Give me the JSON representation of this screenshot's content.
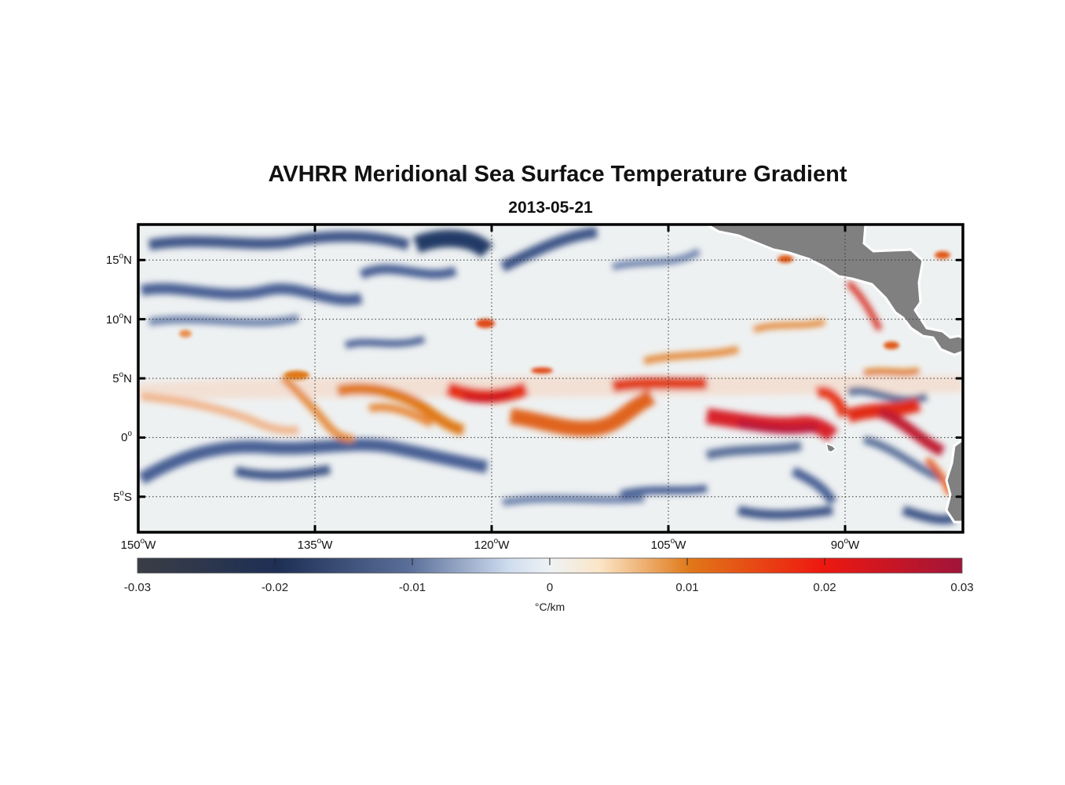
{
  "title": "AVHRR Meridional Sea Surface Temperature Gradient",
  "subtitle": "2013-05-21",
  "map": {
    "lon_range": [
      -150,
      -80
    ],
    "lat_range": [
      -8,
      18
    ],
    "lat_ticks": [
      {
        "num": "15",
        "hem": "N"
      },
      {
        "num": "10",
        "hem": "N"
      },
      {
        "num": "5",
        "hem": "N"
      },
      {
        "num": "0",
        "hem": ""
      },
      {
        "num": "5",
        "hem": "S"
      }
    ],
    "lon_ticks": [
      {
        "num": "150",
        "hem": "W"
      },
      {
        "num": "135",
        "hem": "W"
      },
      {
        "num": "120",
        "hem": "W"
      },
      {
        "num": "105",
        "hem": "W"
      },
      {
        "num": "90",
        "hem": "W"
      }
    ],
    "degree_symbol": "o",
    "land_color": "#808080",
    "grid_style": "dotted"
  },
  "colorbar": {
    "ticks": [
      "-0.03",
      "-0.02",
      "-0.01",
      "0",
      "0.01",
      "0.02",
      "0.03"
    ],
    "units": "°C/km",
    "colors": [
      "#3a3d45",
      "#1e2f55",
      "#5a6f99",
      "#eef2f5",
      "#f8e8d0",
      "#e07818",
      "#ee1810",
      "#a0143a"
    ]
  }
}
